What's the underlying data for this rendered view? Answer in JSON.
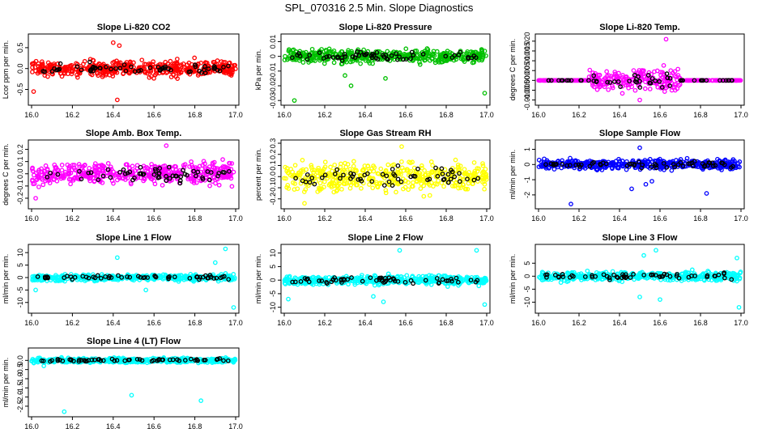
{
  "title": "SPL_070316  2.5 Min. Slope Diagnostics",
  "chart_data": [
    {
      "type": "scatter",
      "title": "Slope Li-820 CO2",
      "ylabel": "Lcor ppm per min.",
      "color": "#ff0000",
      "xlim": [
        16.0,
        17.0
      ],
      "ylim": [
        -0.8,
        0.75
      ],
      "yticks": [
        -0.5,
        0.0,
        0.5
      ],
      "ytick_labels": [
        "-0.5",
        "0.0",
        "0.5"
      ],
      "xticks": [
        16.0,
        16.2,
        16.4,
        16.6,
        16.8,
        17.0
      ],
      "xtick_labels": [
        "16.0",
        "16.2",
        "16.4",
        "16.6",
        "16.8",
        "17.0"
      ],
      "spread": 0.18,
      "outliers": [
        [
          16.4,
          0.62
        ],
        [
          16.42,
          -0.75
        ],
        [
          16.01,
          -0.55
        ],
        [
          16.43,
          0.55
        ]
      ]
    },
    {
      "type": "scatter",
      "title": "Slope Li-820 Pressure",
      "ylabel": "kPa per min.",
      "color": "#00c000",
      "xlim": [
        16.0,
        17.0
      ],
      "ylim": [
        -0.031,
        0.013
      ],
      "yticks": [
        -0.03,
        -0.02,
        -0.01,
        0.0,
        0.01
      ],
      "ytick_labels": [
        "-0.03",
        "-0.02",
        "-0.01",
        "0",
        "0.01"
      ],
      "xticks": [
        16.0,
        16.2,
        16.4,
        16.6,
        16.8,
        17.0
      ],
      "xtick_labels": [
        "16.0",
        "16.2",
        "16.4",
        "16.6",
        "16.8",
        "17.0"
      ],
      "spread": 0.004,
      "outliers": [
        [
          16.33,
          -0.02
        ],
        [
          16.05,
          -0.03
        ],
        [
          16.5,
          -0.015
        ],
        [
          16.99,
          -0.025
        ],
        [
          16.3,
          -0.013
        ]
      ]
    },
    {
      "type": "scatter",
      "title": "Slope Li-820 Temp.",
      "ylabel": "degrees C per min.",
      "color": "#ff00ff",
      "xlim": [
        16.0,
        17.0
      ],
      "ylim": [
        -0.011,
        0.022
      ],
      "yticks": [
        -0.01,
        -0.005,
        0.0,
        0.005,
        0.01,
        0.015,
        0.02
      ],
      "ytick_labels": [
        "-0.010",
        "-0.005",
        "0.000",
        "0.005",
        "0.010",
        "0.015",
        "0.020"
      ],
      "xticks": [
        16.0,
        16.2,
        16.4,
        16.6,
        16.8,
        17.0
      ],
      "xtick_labels": [
        "16.0",
        "16.2",
        "16.4",
        "16.6",
        "16.8",
        "17.0"
      ],
      "spread": 0.0,
      "center_spread": 0.005,
      "center_range": [
        16.25,
        16.7
      ],
      "outliers": [
        [
          16.63,
          0.021
        ],
        [
          16.5,
          -0.01
        ]
      ]
    },
    {
      "type": "scatter",
      "title": "Slope Amb. Box Temp.",
      "ylabel": "degrees C per min.",
      "color": "#ff00ff",
      "xlim": [
        16.0,
        17.0
      ],
      "ylim": [
        -0.26,
        0.25
      ],
      "yticks": [
        -0.2,
        -0.1,
        0.0,
        0.1,
        0.2
      ],
      "ytick_labels": [
        "-0.2",
        "-0.1",
        "0.0",
        "0.1",
        "0.2"
      ],
      "xticks": [
        16.0,
        16.2,
        16.4,
        16.6,
        16.8,
        17.0
      ],
      "xtick_labels": [
        "16.0",
        "16.2",
        "16.4",
        "16.6",
        "16.8",
        "17.0"
      ],
      "spread": 0.08,
      "outliers": [
        [
          16.66,
          0.23
        ],
        [
          16.02,
          -0.2
        ]
      ]
    },
    {
      "type": "scatter",
      "title": "Slope Gas Stream RH",
      "ylabel": "percent per min.",
      "color": "#ffff00",
      "xlim": [
        16.0,
        17.0
      ],
      "ylim": [
        -0.26,
        0.3
      ],
      "yticks": [
        -0.2,
        -0.1,
        0.0,
        0.1,
        0.2,
        0.3
      ],
      "ytick_labels": [
        "-0.2",
        "-0.1",
        "0.0",
        "0.1",
        "0.2",
        "0.3"
      ],
      "xticks": [
        16.0,
        16.2,
        16.4,
        16.6,
        16.8,
        17.0
      ],
      "xtick_labels": [
        "16.0",
        "16.2",
        "16.4",
        "16.6",
        "16.8",
        "17.0"
      ],
      "spread": 0.12,
      "outliers": [
        [
          16.58,
          0.27
        ],
        [
          16.1,
          -0.24
        ]
      ]
    },
    {
      "type": "scatter",
      "title": "Slope Sample Flow",
      "ylabel": "ml/min per min.",
      "color": "#0000ff",
      "xlim": [
        16.0,
        17.0
      ],
      "ylim": [
        -2.7,
        1.4
      ],
      "yticks": [
        -2,
        -1,
        0,
        1
      ],
      "ytick_labels": [
        "-2",
        "-1",
        "0",
        "1"
      ],
      "xticks": [
        16.0,
        16.2,
        16.4,
        16.6,
        16.8,
        17.0
      ],
      "xtick_labels": [
        "16.0",
        "16.2",
        "16.4",
        "16.6",
        "16.8",
        "17.0"
      ],
      "spread": 0.3,
      "outliers": [
        [
          16.16,
          -2.6
        ],
        [
          16.46,
          -1.6
        ],
        [
          16.83,
          -1.9
        ],
        [
          16.56,
          -1.1
        ],
        [
          16.5,
          1.1
        ],
        [
          16.53,
          -1.3
        ]
      ]
    },
    {
      "type": "scatter",
      "title": "Slope Line 1 Flow",
      "ylabel": "ml/min per min.",
      "color": "#00ffff",
      "xlim": [
        16.0,
        17.0
      ],
      "ylim": [
        -13,
        12
      ],
      "yticks": [
        -10,
        -5,
        0,
        5,
        10
      ],
      "ytick_labels": [
        "-10",
        "-5",
        "0",
        "5",
        "10"
      ],
      "xticks": [
        16.0,
        16.2,
        16.4,
        16.6,
        16.8,
        17.0
      ],
      "xtick_labels": [
        "16.0",
        "16.2",
        "16.4",
        "16.6",
        "16.8",
        "17.0"
      ],
      "spread": 1.2,
      "outliers": [
        [
          16.95,
          11.5
        ],
        [
          16.99,
          -12
        ],
        [
          16.42,
          8
        ],
        [
          16.56,
          -5
        ],
        [
          16.02,
          -5
        ],
        [
          16.9,
          6
        ]
      ]
    },
    {
      "type": "scatter",
      "title": "Slope Line 2 Flow",
      "ylabel": "ml/min per min.",
      "color": "#00ffff",
      "xlim": [
        16.0,
        17.0
      ],
      "ylim": [
        -11,
        12
      ],
      "yticks": [
        -10,
        -5,
        0,
        5,
        10
      ],
      "ytick_labels": [
        "-10",
        "-5",
        "0",
        "5",
        "10"
      ],
      "xticks": [
        16.0,
        16.2,
        16.4,
        16.6,
        16.8,
        17.0
      ],
      "xtick_labels": [
        "16.0",
        "16.2",
        "16.4",
        "16.6",
        "16.8",
        "17.0"
      ],
      "spread": 1.6,
      "outliers": [
        [
          16.57,
          11
        ],
        [
          16.99,
          -9
        ],
        [
          16.95,
          11
        ],
        [
          16.44,
          -6
        ],
        [
          16.49,
          -8
        ],
        [
          16.02,
          -7
        ]
      ]
    },
    {
      "type": "scatter",
      "title": "Slope Line 3 Flow",
      "ylabel": "ml/min per min.",
      "color": "#00ffff",
      "xlim": [
        16.0,
        17.0
      ],
      "ylim": [
        -13,
        11
      ],
      "yticks": [
        -10,
        -5,
        0,
        5
      ],
      "ytick_labels": [
        "-10",
        "-5",
        "0",
        "5"
      ],
      "xticks": [
        16.0,
        16.2,
        16.4,
        16.6,
        16.8,
        17.0
      ],
      "xtick_labels": [
        "16.0",
        "16.2",
        "16.4",
        "16.6",
        "16.8",
        "17.0"
      ],
      "spread": 1.6,
      "outliers": [
        [
          16.99,
          -12
        ],
        [
          16.58,
          10
        ],
        [
          16.5,
          -8
        ],
        [
          16.6,
          -9
        ],
        [
          16.98,
          7
        ],
        [
          16.52,
          8
        ]
      ]
    },
    {
      "type": "scatter",
      "title": "Slope Line 4 (LT) Flow",
      "ylabel": "ml/min per min.",
      "color": "#00ffff",
      "xlim": [
        16.0,
        17.0
      ],
      "ylim": [
        -2.9,
        0.5
      ],
      "yticks": [
        -2.5,
        -2.0,
        -1.5,
        -1.0,
        -0.5,
        0.0
      ],
      "ytick_labels": [
        "-2.5",
        "-2.0",
        "-1.5",
        "-1.0",
        "-0.5",
        "0.0"
      ],
      "xticks": [
        16.0,
        16.2,
        16.4,
        16.6,
        16.8,
        17.0
      ],
      "xtick_labels": [
        "16.0",
        "16.2",
        "16.4",
        "16.6",
        "16.8",
        "17.0"
      ],
      "spread": 0.12,
      "outliers": [
        [
          16.16,
          -2.8
        ],
        [
          16.49,
          -1.9
        ],
        [
          16.83,
          -2.2
        ],
        [
          16.06,
          -0.3
        ]
      ]
    }
  ]
}
